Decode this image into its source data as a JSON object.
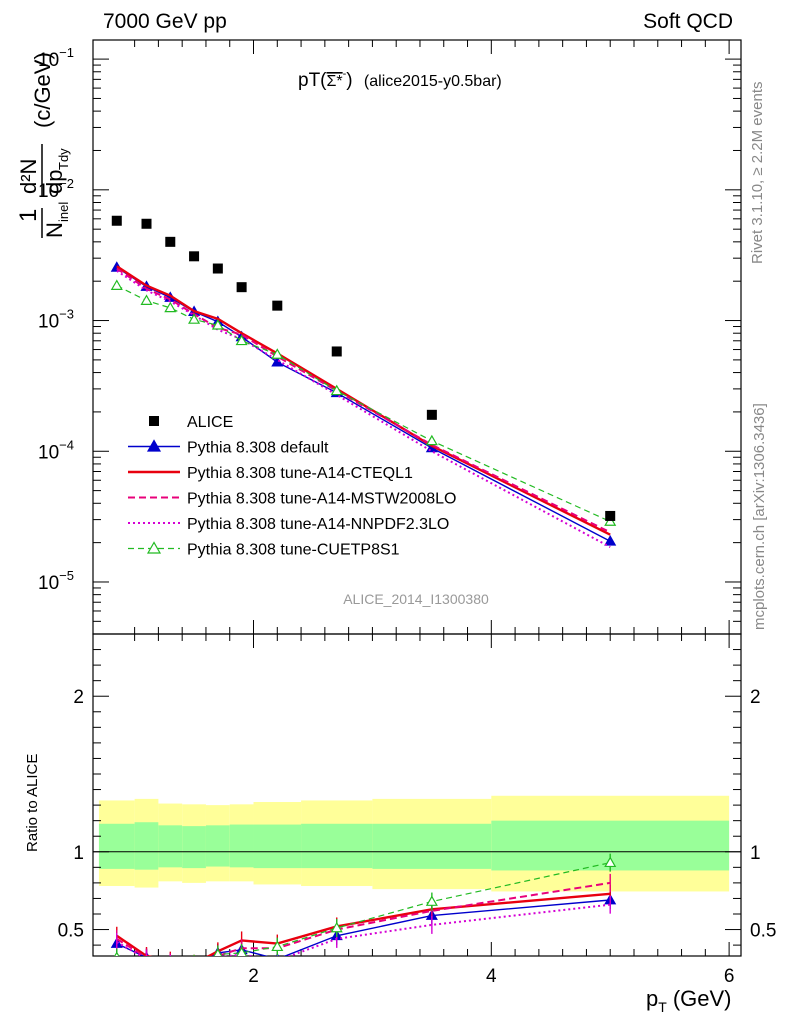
{
  "header": {
    "left": "7000 GeV pp",
    "right": "Soft QCD"
  },
  "side_labels": {
    "rivet": "Rivet 3.1.10, ≥ 2.2M events",
    "mcplots": "mcplots.cern.ch [arXiv:1306.3436]"
  },
  "plot_title": {
    "main": "pT(",
    "particle": "Σ*",
    "charge": "-",
    "close": ")",
    "analysis": "(alice2015-y0.5bar)"
  },
  "analysis_id": "ALICE_2014_I1300380",
  "ylabel": {
    "prefix": "1",
    "n": "N",
    "n_sub": "inel",
    "num": "d²N",
    "den": "dp",
    "den_sub": "Tdy",
    "unit": "(c/GeV)"
  },
  "ratio_ylabel": "Ratio to ALICE",
  "xlabel": {
    "p": "p",
    "sub": "T",
    "unit": "(GeV)"
  },
  "legend": [
    {
      "name": "ALICE",
      "color": "#000000",
      "style": "data"
    },
    {
      "name": "Pythia 8.308 default",
      "color": "#0000cc",
      "style": "solid-triangle"
    },
    {
      "name": "Pythia 8.308 tune-A14-CTEQL1",
      "color": "#e8000f",
      "style": "solid-thick"
    },
    {
      "name": "Pythia 8.308 tune-A14-MSTW2008LO",
      "color": "#e8007a",
      "style": "dashed"
    },
    {
      "name": "Pythia 8.308 tune-A14-NNPDF2.3LO",
      "color": "#d400d4",
      "style": "dotted"
    },
    {
      "name": "Pythia 8.308 tune-CUETP8S1",
      "color": "#22bb22",
      "style": "dashed-open-triangle"
    }
  ],
  "chart_data": {
    "type": "scatter",
    "x_range": [
      0.65,
      6.1
    ],
    "y_range_log": [
      4e-06,
      0.14
    ],
    "y_scale": "log",
    "ratio_range": [
      0.33,
      2.4
    ],
    "x_ticks": [
      2,
      4,
      6
    ],
    "main_y_ticks": [
      {
        "value": 1e-05,
        "base": "10",
        "exp": "−5"
      },
      {
        "value": 0.0001,
        "base": "10",
        "exp": "−4"
      },
      {
        "value": 0.001,
        "base": "10",
        "exp": "−3"
      },
      {
        "value": 0.01,
        "base": "10",
        "exp": "−2"
      },
      {
        "value": 0.1,
        "base": "10",
        "exp": "−1"
      }
    ],
    "ratio_y_ticks": [
      {
        "value": 0.5,
        "label": "0.5"
      },
      {
        "value": 1,
        "label": "1"
      },
      {
        "value": 2,
        "label": "2"
      }
    ],
    "data": {
      "name": "ALICE",
      "x": [
        0.85,
        1.1,
        1.3,
        1.5,
        1.7,
        1.9,
        2.2,
        2.7,
        3.5,
        5.0
      ],
      "y": [
        0.0058,
        0.0055,
        0.004,
        0.0031,
        0.0025,
        0.0018,
        0.0013,
        0.00058,
        0.00019,
        3.2e-05
      ]
    },
    "bands": {
      "edges": [
        0.7,
        1.0,
        1.2,
        1.4,
        1.6,
        1.8,
        2.0,
        2.4,
        3.0,
        4.0,
        6.0
      ],
      "stat_lo": [
        0.89,
        0.885,
        0.9,
        0.895,
        0.905,
        0.9,
        0.895,
        0.895,
        0.89,
        0.88
      ],
      "stat_hi": [
        1.18,
        1.19,
        1.17,
        1.165,
        1.17,
        1.175,
        1.175,
        1.18,
        1.18,
        1.2
      ],
      "syst_lo": [
        0.78,
        0.77,
        0.81,
        0.8,
        0.81,
        0.81,
        0.79,
        0.78,
        0.76,
        0.745
      ],
      "syst_hi": [
        1.33,
        1.34,
        1.31,
        1.305,
        1.3,
        1.305,
        1.32,
        1.33,
        1.34,
        1.36
      ]
    },
    "series": [
      {
        "name": "Pythia 8.308 default",
        "color": "#0000cc",
        "x": [
          0.85,
          1.1,
          1.3,
          1.5,
          1.7,
          1.9,
          2.2,
          2.7,
          3.5,
          5.0
        ],
        "y": [
          0.00255,
          0.00182,
          0.0015,
          0.00117,
          0.00098,
          0.00075,
          0.00048,
          0.00028,
          0.000106,
          2.05e-05
        ],
        "ratio": [
          0.41,
          0.32,
          0.29,
          0.27,
          0.35,
          0.37,
          0.31,
          0.46,
          0.59,
          0.69
        ]
      },
      {
        "name": "Pythia 8.308 tune-A14-CTEQL1",
        "color": "#e8000f",
        "x": [
          0.85,
          1.1,
          1.3,
          1.5,
          1.7,
          1.9,
          2.2,
          2.7,
          3.5,
          5.0
        ],
        "y": [
          0.0026,
          0.00185,
          0.00155,
          0.00118,
          0.00103,
          0.0008,
          0.00056,
          0.0003,
          0.00011,
          2.3e-05
        ],
        "ratio": [
          0.46,
          0.33,
          0.3,
          0.28,
          0.36,
          0.43,
          0.41,
          0.52,
          0.63,
          0.73
        ]
      },
      {
        "name": "Pythia 8.308 tune-A14-MSTW2008LO",
        "color": "#e8007a",
        "x": [
          0.85,
          1.1,
          1.3,
          1.5,
          1.7,
          1.9,
          2.2,
          2.7,
          3.5,
          5.0
        ],
        "y": [
          0.0025,
          0.00175,
          0.00145,
          0.00112,
          0.00088,
          0.00078,
          0.00053,
          0.00029,
          0.000112,
          2.4e-05
        ],
        "ratio": [
          0.44,
          0.32,
          0.29,
          0.27,
          0.33,
          0.38,
          0.38,
          0.5,
          0.62,
          0.8
        ]
      },
      {
        "name": "Pythia 8.308 tune-A14-NNPDF2.3LO",
        "color": "#d400d4",
        "x": [
          0.85,
          1.1,
          1.3,
          1.5,
          1.7,
          1.9,
          2.2,
          2.7,
          3.5,
          5.0
        ],
        "y": [
          0.0024,
          0.0017,
          0.0014,
          0.0011,
          0.00085,
          0.00072,
          0.0005,
          0.00027,
          0.0001,
          1.85e-05
        ],
        "ratio": [
          0.42,
          0.31,
          0.28,
          0.26,
          0.32,
          0.34,
          0.3,
          0.44,
          0.53,
          0.66
        ]
      },
      {
        "name": "Pythia 8.308 tune-CUETP8S1",
        "color": "#22bb22",
        "x": [
          0.85,
          1.1,
          1.3,
          1.5,
          1.7,
          1.9,
          2.2,
          2.7,
          3.5,
          5.0
        ],
        "y": [
          0.00185,
          0.00142,
          0.00125,
          0.00102,
          0.00092,
          0.0007,
          0.00055,
          0.00029,
          0.00012,
          2.9e-05
        ],
        "ratio": [
          0.32,
          0.26,
          0.27,
          0.28,
          0.34,
          0.35,
          0.39,
          0.51,
          0.68,
          0.93
        ]
      }
    ]
  }
}
